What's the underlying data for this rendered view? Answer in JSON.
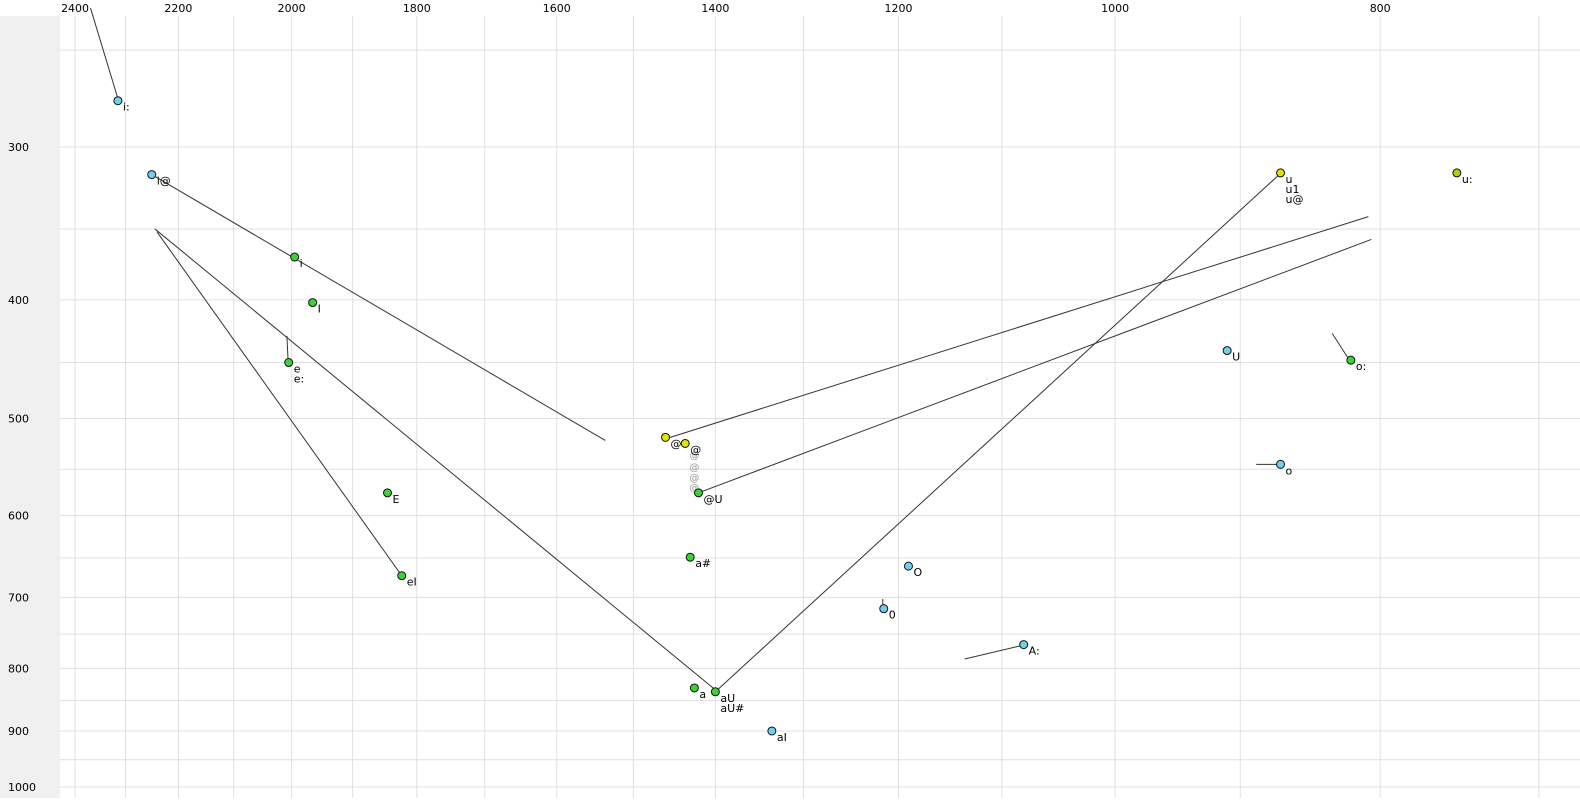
{
  "chart_data": {
    "type": "scatter",
    "title": "",
    "xlabel": "",
    "ylabel": "",
    "description": "Vowel formant plot: F2 (Hz) on reversed log top axis, F1 (Hz) on log left axis",
    "x_axis": {
      "position": "top",
      "unit": "Hz",
      "scale": "log-reversed",
      "tick_labels": [
        2400,
        2200,
        2000,
        1800,
        1600,
        1400,
        1200,
        1000,
        800
      ],
      "grid_values": [
        2400,
        2300,
        2200,
        2100,
        2000,
        1900,
        1800,
        1700,
        1600,
        1500,
        1400,
        1300,
        1200,
        1100,
        1000,
        900,
        800,
        700
      ],
      "range": [
        2550,
        660
      ]
    },
    "y_axis": {
      "position": "left",
      "unit": "Hz",
      "scale": "log",
      "tick_labels": [
        300,
        400,
        500,
        600,
        700,
        800,
        900,
        1000
      ],
      "grid_values": [
        250,
        300,
        350,
        400,
        450,
        500,
        550,
        600,
        650,
        700,
        750,
        800,
        850,
        900,
        950,
        1000
      ],
      "range": [
        230,
        1030
      ]
    },
    "colors": {
      "cyan": "#6ecfee",
      "green": "#3cd435",
      "yellow": "#e3e300",
      "yellowgreen": "#a8d400",
      "grid": "#e0e0e0",
      "line": "#333333",
      "ghost": "#999999",
      "label": "#000000",
      "strip": "#f0f0f0"
    },
    "points": [
      {
        "labels": [
          "i:"
        ],
        "f2": 2315,
        "f1": 275,
        "color": "cyan"
      },
      {
        "labels": [
          "i@"
        ],
        "f2": 2250,
        "f1": 316,
        "color": "cyan"
      },
      {
        "labels": [
          "i"
        ],
        "f2": 1995,
        "f1": 369,
        "color": "green"
      },
      {
        "labels": [
          "I"
        ],
        "f2": 1965,
        "f1": 402,
        "color": "green"
      },
      {
        "labels": [
          "e",
          "e:"
        ],
        "f2": 2005,
        "f1": 450,
        "color": "green"
      },
      {
        "labels": [
          "E"
        ],
        "f2": 1845,
        "f1": 575,
        "color": "green"
      },
      {
        "labels": [
          "eI"
        ],
        "f2": 1823,
        "f1": 672,
        "color": "green"
      },
      {
        "labels": [
          "@"
        ],
        "f2": 1460,
        "f1": 518,
        "color": "yellow"
      },
      {
        "labels": [
          "@"
        ],
        "f2": 1436,
        "f1": 524,
        "color": "yellow"
      },
      {
        "labels": [
          "@U"
        ],
        "f2": 1420,
        "f1": 575,
        "color": "green"
      },
      {
        "labels": [
          "a#"
        ],
        "f2": 1430,
        "f1": 649,
        "color": "green"
      },
      {
        "labels": [
          "a"
        ],
        "f2": 1425,
        "f1": 830,
        "color": "green"
      },
      {
        "labels": [
          "aU",
          "aU#"
        ],
        "f2": 1400,
        "f1": 836,
        "color": "green"
      },
      {
        "labels": [
          "aI"
        ],
        "f2": 1335,
        "f1": 900,
        "color": "cyan"
      },
      {
        "labels": [
          "O"
        ],
        "f2": 1190,
        "f1": 660,
        "color": "cyan"
      },
      {
        "labels": [
          "0"
        ],
        "f2": 1215,
        "f1": 715,
        "color": "cyan"
      },
      {
        "labels": [
          "A:"
        ],
        "f2": 1080,
        "f1": 765,
        "color": "cyan"
      },
      {
        "labels": [
          "U"
        ],
        "f2": 910,
        "f1": 440,
        "color": "cyan"
      },
      {
        "labels": [
          "o"
        ],
        "f2": 870,
        "f1": 545,
        "color": "cyan"
      },
      {
        "labels": [
          "o:"
        ],
        "f2": 820,
        "f1": 448,
        "color": "green"
      },
      {
        "labels": [
          "u",
          "u1",
          "u@"
        ],
        "f2": 870,
        "f1": 315,
        "color": "yellow"
      },
      {
        "labels": [
          "u:"
        ],
        "f2": 750,
        "f1": 315,
        "color": "yellowgreen"
      }
    ],
    "ghost_at_stack": {
      "glyph": "@",
      "f2": 1425,
      "f1_values": [
        536,
        548,
        559,
        570
      ]
    },
    "lines": [
      {
        "a": [
          2369,
          231
        ],
        "b": [
          2316,
          273
        ]
      },
      {
        "a": [
          2250,
          316
        ],
        "b": [
          1536,
          521
        ]
      },
      {
        "a": [
          2240,
          352
        ],
        "b": [
          1823,
          672
        ]
      },
      {
        "a": [
          2244,
          350
        ],
        "b": [
          1400,
          833
        ]
      },
      {
        "a": [
          1400,
          836
        ],
        "b": [
          871,
          316
        ]
      },
      {
        "a": [
          1420,
          575
        ],
        "b": [
          806,
          357
        ]
      },
      {
        "a": [
          1462,
          520
        ],
        "b": [
          808,
          342
        ]
      },
      {
        "a": [
          2008,
          428
        ],
        "b": [
          2006,
          449
        ]
      },
      {
        "a": [
          1216,
          702
        ],
        "b": [
          1216,
          717
        ]
      },
      {
        "a": [
          1135,
          786
        ],
        "b": [
          1081,
          766
        ]
      },
      {
        "a": [
          833,
          426
        ],
        "b": [
          821,
          448
        ]
      },
      {
        "a": [
          888,
          545
        ],
        "b": [
          871,
          545
        ]
      }
    ]
  }
}
